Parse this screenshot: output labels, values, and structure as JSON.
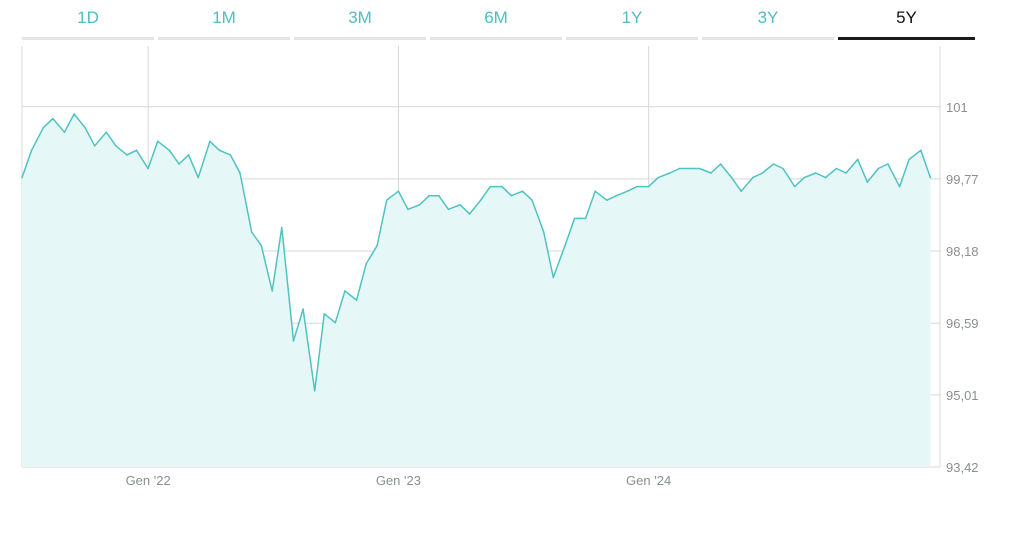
{
  "tabs": [
    {
      "label": "1D",
      "active": false
    },
    {
      "label": "1M",
      "active": false
    },
    {
      "label": "3M",
      "active": false
    },
    {
      "label": "6M",
      "active": false
    },
    {
      "label": "1Y",
      "active": false
    },
    {
      "label": "3Y",
      "active": false
    },
    {
      "label": "5Y",
      "active": true
    }
  ],
  "colors": {
    "line": "#4fc3c0",
    "fill": "#e6f7f7",
    "accent": "#4bbfc2",
    "grid": "#d4d8db"
  },
  "chart_data": {
    "type": "area",
    "x_ticks": [
      "Gen '22",
      "Gen '23",
      "Gen '24"
    ],
    "y_ticks": [
      "93,42",
      "95,01",
      "96,59",
      "98,18",
      "99,77",
      "101"
    ],
    "y_tick_values": [
      93.42,
      95.01,
      96.59,
      98.18,
      99.77,
      101.36
    ],
    "ylim": [
      93.42,
      102.7
    ],
    "xlim": [
      "2021-07-01",
      "2025-03-01"
    ],
    "grid": true,
    "series": [
      {
        "x": [
          "2021-07-01",
          "2021-07-15",
          "2021-08-01",
          "2021-08-15",
          "2021-09-01",
          "2021-09-15",
          "2021-10-01",
          "2021-10-15",
          "2021-11-01",
          "2021-11-15",
          "2021-12-01",
          "2021-12-15",
          "2022-01-01",
          "2022-01-15",
          "2022-02-01",
          "2022-02-15",
          "2022-03-01",
          "2022-03-15",
          "2022-04-01",
          "2022-04-15",
          "2022-05-01",
          "2022-05-15",
          "2022-06-01",
          "2022-06-15",
          "2022-07-01",
          "2022-07-15",
          "2022-08-01",
          "2022-08-15",
          "2022-09-01",
          "2022-09-15",
          "2022-10-01",
          "2022-10-15",
          "2022-11-01",
          "2022-11-15",
          "2022-12-01",
          "2022-12-15",
          "2023-01-01",
          "2023-01-15",
          "2023-02-01",
          "2023-02-15",
          "2023-03-01",
          "2023-03-15",
          "2023-04-01",
          "2023-04-15",
          "2023-05-01",
          "2023-05-15",
          "2023-06-01",
          "2023-06-15",
          "2023-07-01",
          "2023-07-15",
          "2023-08-01",
          "2023-08-15",
          "2023-09-01",
          "2023-09-15",
          "2023-10-01",
          "2023-10-15",
          "2023-11-01",
          "2023-11-15",
          "2023-12-01",
          "2023-12-15",
          "2024-01-01",
          "2024-01-15",
          "2024-02-01",
          "2024-02-15",
          "2024-03-01",
          "2024-03-15",
          "2024-04-01",
          "2024-04-15",
          "2024-05-01",
          "2024-05-15",
          "2024-06-01",
          "2024-06-15",
          "2024-07-01",
          "2024-07-15",
          "2024-08-01",
          "2024-08-15",
          "2024-09-01",
          "2024-09-15",
          "2024-10-01",
          "2024-10-15",
          "2024-11-01",
          "2024-11-15",
          "2024-12-01",
          "2024-12-15",
          "2025-01-01",
          "2025-01-15",
          "2025-02-01",
          "2025-02-15"
        ],
        "values": [
          99.8,
          100.4,
          100.9,
          101.1,
          100.8,
          101.2,
          100.9,
          100.5,
          100.8,
          100.5,
          100.3,
          100.4,
          100.0,
          100.6,
          100.4,
          100.1,
          100.3,
          99.8,
          100.6,
          100.4,
          100.3,
          99.9,
          98.6,
          98.3,
          97.3,
          98.7,
          96.2,
          96.9,
          95.1,
          96.8,
          96.6,
          97.3,
          97.1,
          97.9,
          98.3,
          99.3,
          99.5,
          99.1,
          99.2,
          99.4,
          99.4,
          99.1,
          99.2,
          99.0,
          99.3,
          99.6,
          99.6,
          99.4,
          99.5,
          99.3,
          98.6,
          97.6,
          98.3,
          98.9,
          98.9,
          99.5,
          99.3,
          99.4,
          99.5,
          99.6,
          99.6,
          99.8,
          99.9,
          100.0,
          100.0,
          100.0,
          99.9,
          100.1,
          99.8,
          99.5,
          99.8,
          99.9,
          100.1,
          100.0,
          99.6,
          99.8,
          99.9,
          99.8,
          100.0,
          99.9,
          100.2,
          99.7,
          100.0,
          100.1,
          99.6,
          100.2,
          100.4,
          99.8
        ]
      }
    ]
  }
}
